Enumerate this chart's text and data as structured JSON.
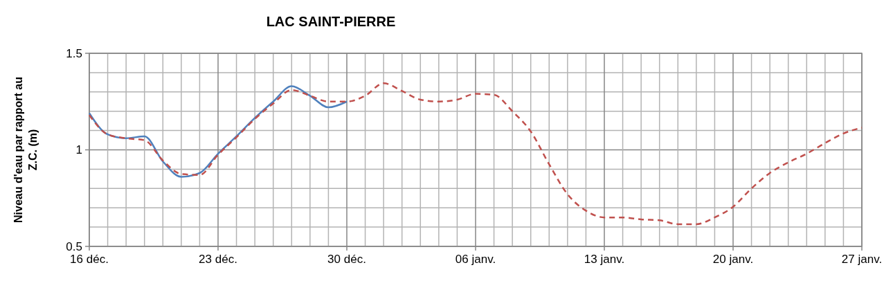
{
  "chart_data": {
    "type": "line",
    "title": "LAC SAINT-PIERRE",
    "ylabel": "Niveau d'eau par rapport au Z.C. (m)",
    "categories": [
      "16 déc.",
      null,
      null,
      null,
      null,
      null,
      null,
      "23 déc.",
      null,
      null,
      null,
      null,
      null,
      null,
      "30 déc.",
      null,
      null,
      null,
      null,
      null,
      null,
      "06 janv.",
      null,
      null,
      null,
      null,
      null,
      null,
      "13 janv.",
      null,
      null,
      null,
      null,
      null,
      null,
      "20 janv.",
      null,
      null,
      null,
      null,
      null,
      null,
      "27 janv."
    ],
    "series": [
      {
        "color": "#4f81bd",
        "line_style": "solid",
        "values": [
          1.19,
          1.08,
          1.06,
          1.07,
          0.94,
          0.86,
          0.88,
          0.98,
          1.07,
          1.165,
          1.25,
          1.33,
          1.28,
          1.22,
          1.25,
          null,
          null,
          null,
          null,
          null,
          null,
          null,
          null,
          null,
          null,
          null,
          null,
          null,
          null,
          null,
          null,
          null,
          null,
          null,
          null,
          null,
          null,
          null,
          null,
          null,
          null,
          null,
          null
        ]
      },
      {
        "color": "#c0504d",
        "line_style": "dashed",
        "values": [
          1.18,
          1.08,
          1.06,
          1.05,
          0.945,
          0.875,
          0.87,
          0.975,
          1.065,
          1.16,
          1.24,
          1.31,
          1.28,
          1.25,
          1.25,
          1.28,
          1.345,
          1.305,
          1.26,
          1.25,
          1.26,
          1.29,
          1.285,
          1.2,
          1.095,
          0.925,
          0.77,
          0.685,
          0.65,
          0.65,
          0.64,
          0.635,
          0.615,
          0.615,
          0.65,
          0.705,
          0.8,
          0.88,
          0.935,
          0.98,
          1.035,
          1.085,
          1.115
        ]
      }
    ],
    "ylim": [
      0.5,
      1.5
    ],
    "yticks": [
      {
        "value": 0.5,
        "label": "0.5"
      },
      {
        "value": 0.6,
        "label": null
      },
      {
        "value": 0.7,
        "label": null
      },
      {
        "value": 0.8,
        "label": null
      },
      {
        "value": 0.9,
        "label": null
      },
      1,
      {
        "value": 1.1,
        "label": null
      },
      {
        "value": 1.2,
        "label": null
      },
      {
        "value": 1.3,
        "label": null
      },
      {
        "value": 1.4,
        "label": null
      },
      {
        "value": 1.5,
        "label": "1.5"
      }
    ],
    "grid": true,
    "marker": "none"
  }
}
